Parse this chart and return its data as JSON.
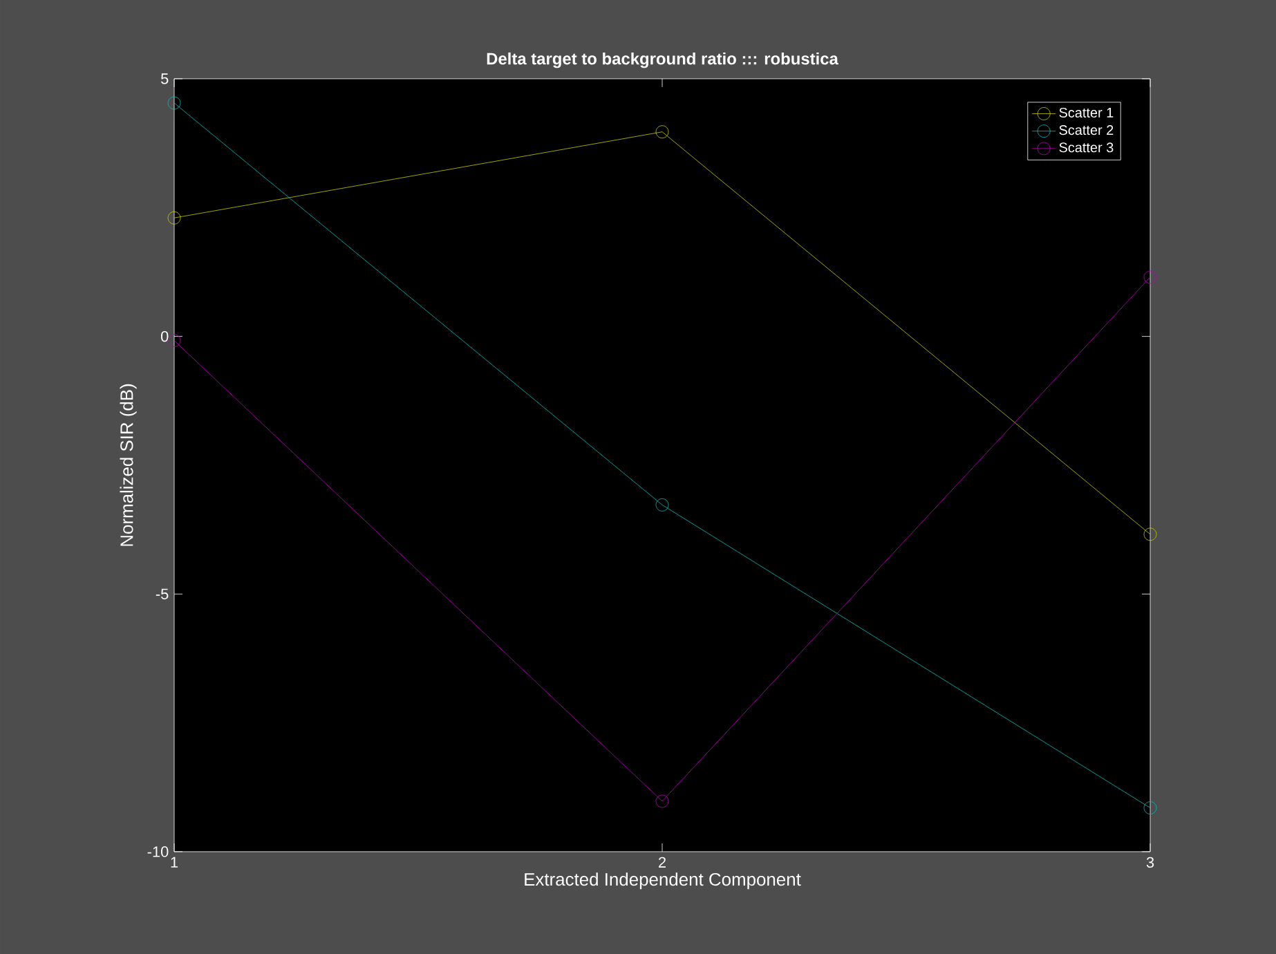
{
  "chart_data": {
    "type": "line",
    "title": "Delta target to background ratio ::: robustica",
    "xlabel": "Extracted Independent Component",
    "ylabel": "Normalized SIR (dB)",
    "x": [
      1,
      2,
      3
    ],
    "xlim": [
      1,
      3
    ],
    "xticks": [
      1,
      2,
      3
    ],
    "ylim": [
      -10,
      5
    ],
    "yticks": [
      -10,
      -5,
      0,
      5
    ],
    "marker": "circle",
    "line_style": "solid",
    "legend": "top right",
    "grid": false,
    "series": [
      {
        "name": "Scatter 1",
        "color": "#cccc00",
        "values": [
          2.3,
          3.97,
          -3.84
        ]
      },
      {
        "name": "Scatter 2",
        "color": "#00bfbf",
        "values": [
          4.53,
          -3.27,
          -9.15
        ]
      },
      {
        "name": "Scatter 3",
        "color": "#bf00bf",
        "values": [
          -0.08,
          -9.02,
          1.15
        ]
      }
    ]
  }
}
